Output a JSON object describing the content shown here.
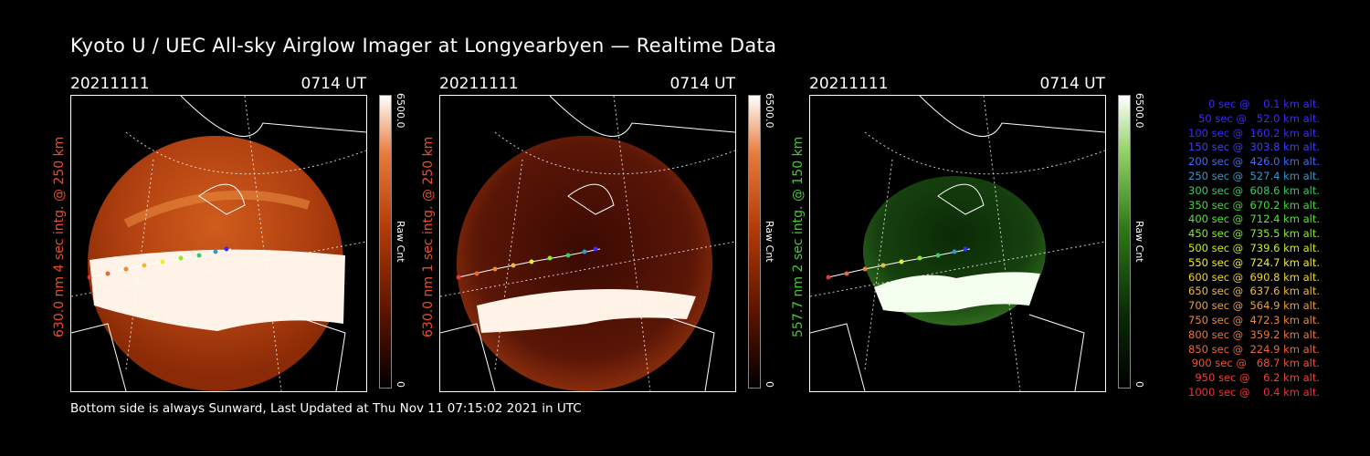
{
  "title": "Kyoto U / UEC All-sky Airglow Imager at Longyearbyen — Realtime Data",
  "footer": "Bottom side is always Sunward, Last Updated at Thu Nov 11 07:15:02 2021 in UTC",
  "panels": [
    {
      "date": "20211111",
      "time": "0714 UT",
      "ylabel": "630.0 nm 4 sec intg. @ 250 km",
      "color": "#e8502a",
      "cb_max": "6500.0",
      "cb_min": "0",
      "cb_unit": "Raw Cnt",
      "theme": "red"
    },
    {
      "date": "20211111",
      "time": "0714 UT",
      "ylabel": "630.0 nm 1 sec intg. @ 250 km",
      "color": "#e8502a",
      "cb_max": "6500.0",
      "cb_min": "0",
      "cb_unit": "Raw Cnt",
      "theme": "red"
    },
    {
      "date": "20211111",
      "time": "0714 UT",
      "ylabel": "557.7 nm 2 sec intg. @ 150 km",
      "color": "#44cc33",
      "cb_max": "6500.0",
      "cb_min": "0",
      "cb_unit": "Raw Cnt",
      "theme": "green"
    }
  ],
  "legend": [
    {
      "text": "0 sec @    0.1 km alt.",
      "color": "#3a2cff"
    },
    {
      "text": "50 sec @   52.0 km alt.",
      "color": "#3a2cff"
    },
    {
      "text": "100 sec @  160.2 km alt.",
      "color": "#3a2cff"
    },
    {
      "text": "150 sec @  303.8 km alt.",
      "color": "#3a40ff"
    },
    {
      "text": "200 sec @  426.0 km alt.",
      "color": "#3a6cff"
    },
    {
      "text": "250 sec @  527.4 km alt.",
      "color": "#3399cc"
    },
    {
      "text": "300 sec @  608.6 km alt.",
      "color": "#33cc66"
    },
    {
      "text": "350 sec @  670.2 km alt.",
      "color": "#44dd33"
    },
    {
      "text": "400 sec @  712.4 km alt.",
      "color": "#55e633"
    },
    {
      "text": "450 sec @  735.5 km alt.",
      "color": "#88ee22"
    },
    {
      "text": "500 sec @  739.6 km alt.",
      "color": "#ccee11"
    },
    {
      "text": "550 sec @  724.7 km alt.",
      "color": "#eeee22"
    },
    {
      "text": "600 sec @  690.8 km alt.",
      "color": "#f2d822"
    },
    {
      "text": "650 sec @  637.6 km alt.",
      "color": "#f0bb33"
    },
    {
      "text": "700 sec @  564.9 km alt.",
      "color": "#ef9f33"
    },
    {
      "text": "750 sec @  472.3 km alt.",
      "color": "#ee8833"
    },
    {
      "text": "800 sec @  359.2 km alt.",
      "color": "#ee7733"
    },
    {
      "text": "850 sec @  224.9 km alt.",
      "color": "#ee6633"
    },
    {
      "text": "900 sec @   68.7 km alt.",
      "color": "#ee5533"
    },
    {
      "text": "950 sec @    6.2 km alt.",
      "color": "#ee4433"
    },
    {
      "text": "1000 sec @    0.4 km alt.",
      "color": "#ee3333"
    }
  ]
}
